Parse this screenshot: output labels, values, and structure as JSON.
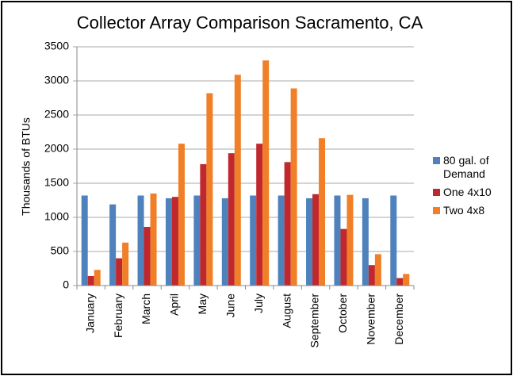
{
  "chart_data": {
    "type": "bar",
    "title": "Collector Array Comparison Sacramento, CA",
    "ylabel": "Thousands of BTUs",
    "categories": [
      "January",
      "February",
      "March",
      "April",
      "May",
      "June",
      "July",
      "August",
      "September",
      "October",
      "November",
      "December"
    ],
    "series": [
      {
        "name": "80 gal. of Demand",
        "color": "#4f81bd",
        "values": [
          1320,
          1190,
          1320,
          1280,
          1320,
          1280,
          1320,
          1320,
          1280,
          1320,
          1280,
          1320
        ]
      },
      {
        "name": "One 4x10",
        "color": "#c0282d",
        "values": [
          140,
          400,
          860,
          1300,
          1780,
          1940,
          2080,
          1810,
          1340,
          830,
          300,
          110
        ]
      },
      {
        "name": "Two 4x8",
        "color": "#f07f27",
        "values": [
          230,
          630,
          1350,
          2080,
          2820,
          3090,
          3300,
          2890,
          2160,
          1330,
          460,
          170
        ]
      }
    ],
    "ylim": [
      0,
      3500
    ],
    "yticks": [
      0,
      500,
      1000,
      1500,
      2000,
      2500,
      3000,
      3500
    ],
    "grid": true,
    "legend": "right"
  }
}
